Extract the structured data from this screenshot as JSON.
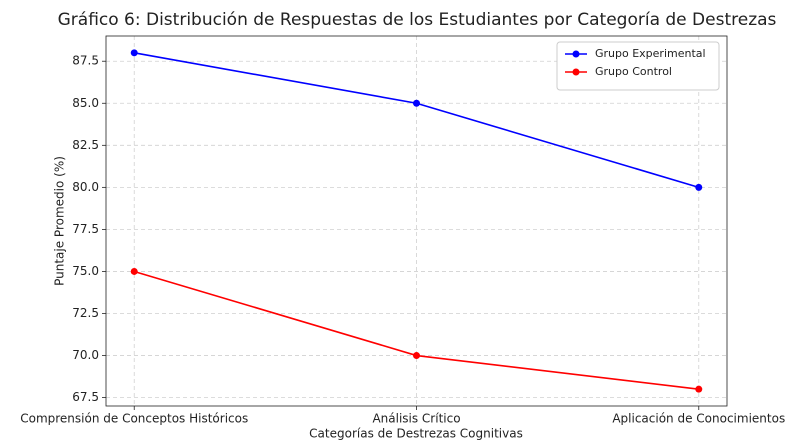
{
  "chart_data": {
    "type": "line",
    "title": "Gráfico 6: Distribución de Respuestas de los Estudiantes por Categoría de Destrezas",
    "xlabel": "Categorías de Destrezas Cognitivas",
    "ylabel": "Puntaje Promedio (%)",
    "categories": [
      "Comprensión de Conceptos Históricos",
      "Análisis Crítico",
      "Aplicación de Conocimientos"
    ],
    "series": [
      {
        "name": "Grupo Experimental",
        "color": "#0000ff",
        "values": [
          88,
          85,
          80
        ]
      },
      {
        "name": "Grupo Control",
        "color": "#ff0000",
        "values": [
          75,
          70,
          68
        ]
      }
    ],
    "ylim": [
      67,
      89
    ],
    "yticks": [
      67.5,
      {
        "value": 70,
        "label": "70.0"
      },
      72.5,
      {
        "value": 75,
        "label": "75.0"
      },
      77.5,
      {
        "value": 80,
        "label": "80.0"
      },
      82.5,
      {
        "value": 85,
        "label": "85.0"
      },
      87.5
    ],
    "grid": true,
    "legend": "upper right"
  }
}
